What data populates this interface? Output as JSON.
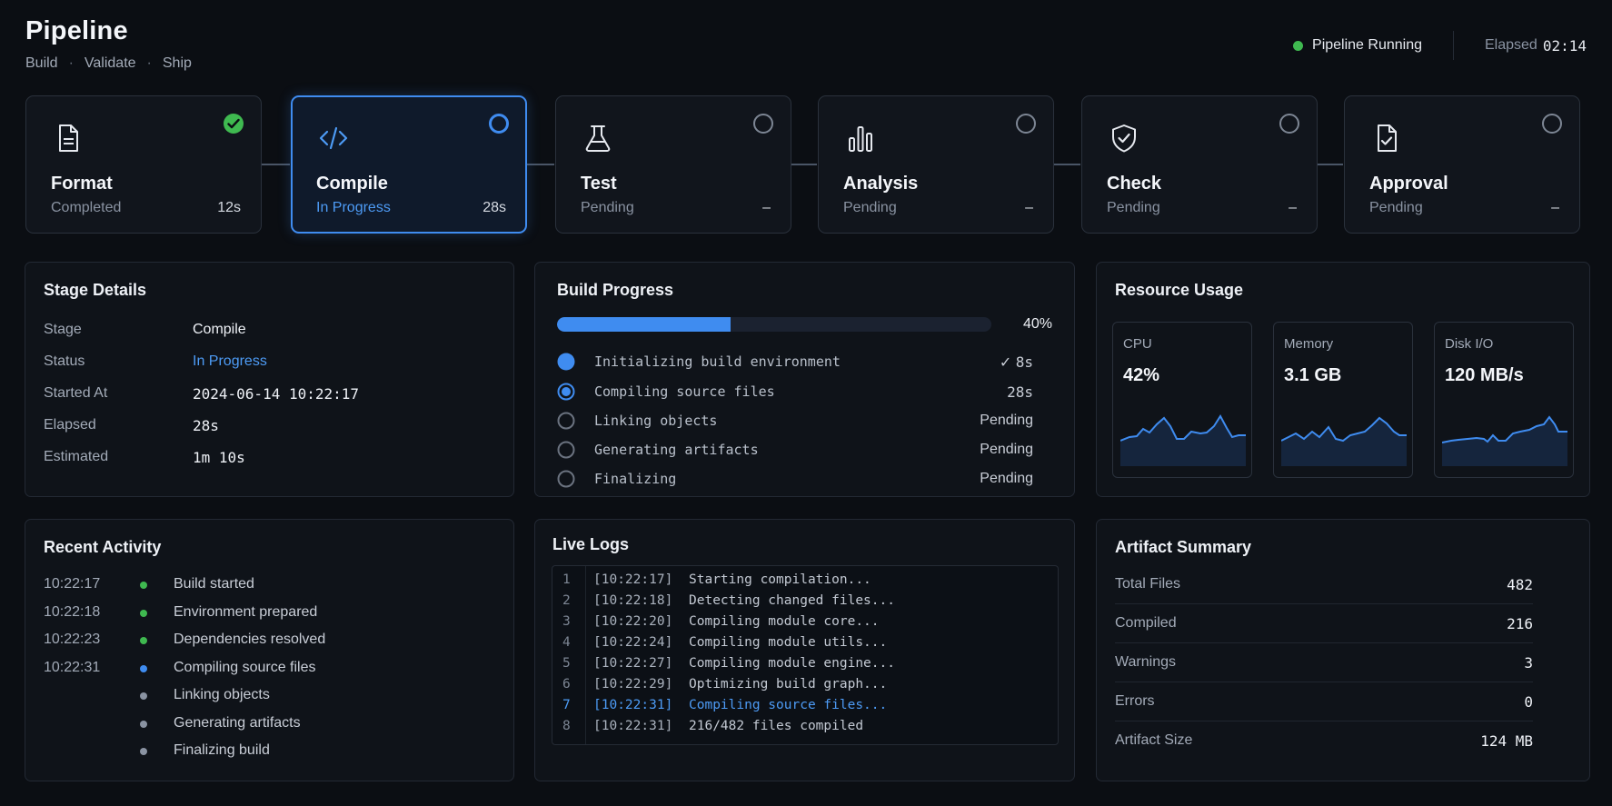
{
  "header": {
    "title": "Pipeline",
    "breadcrumbs": [
      "Build",
      "Validate",
      "Ship"
    ],
    "separator": "·",
    "status_label": "Pipeline Running",
    "status_color": "#3fb950",
    "elapsed_label": "Elapsed",
    "elapsed_value": "02:14"
  },
  "stages": [
    {
      "name": "Format",
      "status": "Completed",
      "time": "12s",
      "state": "completed",
      "icon": "document-icon"
    },
    {
      "name": "Compile",
      "status": "In Progress",
      "time": "28s",
      "state": "active",
      "icon": "code-icon"
    },
    {
      "name": "Test",
      "status": "Pending",
      "time": "–",
      "state": "pending",
      "icon": "flask-icon"
    },
    {
      "name": "Analysis",
      "status": "Pending",
      "time": "–",
      "state": "pending",
      "icon": "bar-chart-icon"
    },
    {
      "name": "Check",
      "status": "Pending",
      "time": "–",
      "state": "pending",
      "icon": "shield-check-icon"
    },
    {
      "name": "Approval",
      "status": "Pending",
      "time": "–",
      "state": "pending",
      "icon": "document-check-icon"
    }
  ],
  "stage_details": {
    "title": "Stage Details",
    "rows": [
      {
        "key": "Stage",
        "value": "Compile"
      },
      {
        "key": "Status",
        "value": "In Progress"
      },
      {
        "key": "Started At",
        "value": "2024-06-14 10:22:17"
      },
      {
        "key": "Elapsed",
        "value": "28s"
      },
      {
        "key": "Estimated",
        "value": "1m 10s"
      }
    ]
  },
  "build_progress": {
    "title": "Build Progress",
    "percent_label": "40%",
    "percent": 40,
    "check_mark": "✓",
    "steps": [
      {
        "label": "Initializing build environment",
        "time": "8s",
        "state": "done"
      },
      {
        "label": "Compiling source files",
        "time": "28s",
        "state": "active"
      },
      {
        "label": "Linking objects",
        "time": "Pending",
        "state": "pending"
      },
      {
        "label": "Generating artifacts",
        "time": "Pending",
        "state": "pending"
      },
      {
        "label": "Finalizing",
        "time": "Pending",
        "state": "pending"
      }
    ]
  },
  "resource_usage": {
    "title": "Resource Usage",
    "cards": [
      {
        "label": "CPU",
        "value": "42%"
      },
      {
        "label": "Memory",
        "value": "3.1 GB"
      },
      {
        "label": "Disk I/O",
        "value": "120 MB/s"
      }
    ]
  },
  "recent_activity": {
    "title": "Recent Activity",
    "items": [
      {
        "time": "10:22:17",
        "text": "Build started",
        "color": "#3fb950"
      },
      {
        "time": "10:22:18",
        "text": "Environment prepared",
        "color": "#3fb950"
      },
      {
        "time": "10:22:23",
        "text": "Dependencies resolved",
        "color": "#3fb950"
      },
      {
        "time": "10:22:31",
        "text": "Compiling source files",
        "color": "#3f8cf0"
      },
      {
        "time": "",
        "text": "Linking objects",
        "color": "#8a93a2"
      },
      {
        "time": "",
        "text": "Generating artifacts",
        "color": "#8a93a2"
      },
      {
        "time": "",
        "text": "Finalizing build",
        "color": "#8a93a2"
      }
    ]
  },
  "live_logs": {
    "title": "Live Logs",
    "lines": [
      {
        "n": "1",
        "ts": "[10:22:17]",
        "msg": "Starting compilation..."
      },
      {
        "n": "2",
        "ts": "[10:22:18]",
        "msg": "Detecting changed files..."
      },
      {
        "n": "3",
        "ts": "[10:22:20]",
        "msg": "Compiling module core..."
      },
      {
        "n": "4",
        "ts": "[10:22:24]",
        "msg": "Compiling module utils..."
      },
      {
        "n": "5",
        "ts": "[10:22:27]",
        "msg": "Compiling module engine..."
      },
      {
        "n": "6",
        "ts": "[10:22:29]",
        "msg": "Optimizing build graph..."
      },
      {
        "n": "7",
        "ts": "[10:22:31]",
        "msg": "Compiling source files...",
        "highlight": true
      },
      {
        "n": "8",
        "ts": "[10:22:31]",
        "msg": "216/482 files compiled"
      }
    ]
  },
  "artifact_summary": {
    "title": "Artifact Summary",
    "rows": [
      {
        "key": "Total Files",
        "value": "482"
      },
      {
        "key": "Compiled",
        "value": "216"
      },
      {
        "key": "Warnings",
        "value": "3"
      },
      {
        "key": "Errors",
        "value": "0"
      },
      {
        "key": "Artifact Size",
        "value": "124 MB"
      }
    ]
  },
  "colors": {
    "accent": "#3f8cf0",
    "success": "#3fb950",
    "background": "#0b0e13"
  }
}
